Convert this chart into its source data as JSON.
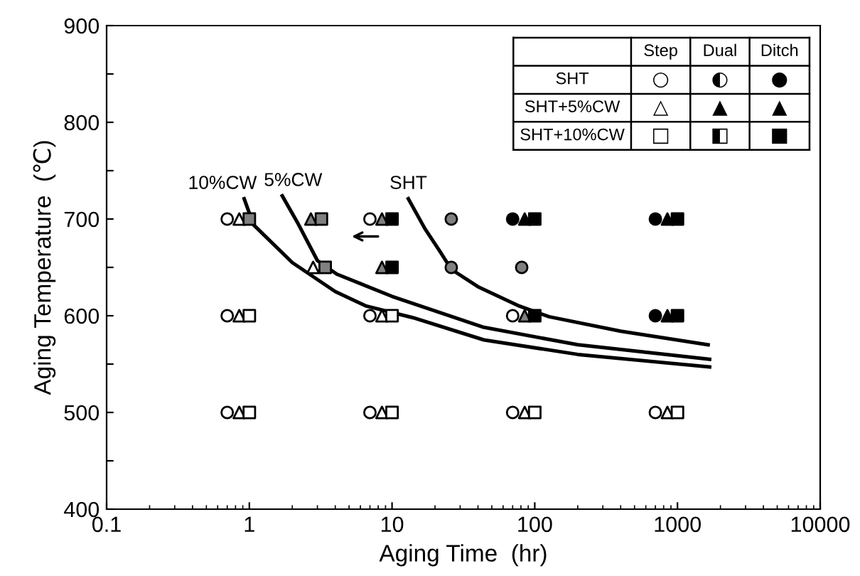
{
  "chart_data": {
    "type": "scatter",
    "xlabel": "Aging Time  (hr)",
    "ylabel": "Aging Temperature  (℃)",
    "log": "x",
    "xlim": [
      0.1,
      10000
    ],
    "xticks": [
      0.1,
      1,
      10,
      100,
      1000,
      10000
    ],
    "ylim": [
      400,
      900
    ],
    "yticks": [
      400,
      {
        "value": 450,
        "label": null
      },
      500,
      {
        "value": 550,
        "label": null
      },
      600,
      {
        "value": 650,
        "label": null
      },
      700,
      {
        "value": 750,
        "label": null
      },
      800,
      {
        "value": 850,
        "label": null
      },
      900
    ],
    "grid": false,
    "annotations": [
      "Step",
      "Dual",
      "Ditch",
      "SHT",
      "○",
      "◐",
      "●",
      "SHT+5%CW",
      "△",
      "▲",
      "▲",
      "SHT+10%CW",
      "□",
      "◧",
      "■"
    ],
    "series": [
      {
        "marker": "circle",
        "color": "#ffffff",
        "x": [
          0.7,
          7,
          0.7,
          7,
          70,
          0.7,
          7,
          70,
          700
        ],
        "values": [
          700,
          700,
          600,
          600,
          600,
          500,
          500,
          500,
          500
        ]
      },
      {
        "marker": "circle",
        "color": "#808080",
        "x": [
          26,
          26,
          81
        ],
        "values": [
          700,
          650,
          650
        ]
      },
      {
        "marker": "circle",
        "color": "#000000",
        "x": [
          70,
          700,
          700
        ],
        "values": [
          700,
          700,
          600
        ]
      },
      {
        "marker": "triangle",
        "color": "#ffffff",
        "x": [
          0.85,
          2.8,
          0.85,
          8.5,
          0.85,
          8.5,
          85,
          850
        ],
        "values": [
          700,
          650,
          600,
          600,
          500,
          500,
          500,
          500
        ]
      },
      {
        "marker": "triangle",
        "color": "#808080",
        "x": [
          2.7,
          8.5,
          8.5,
          85
        ],
        "values": [
          700,
          700,
          650,
          600
        ]
      },
      {
        "marker": "triangle",
        "color": "#000000",
        "x": [
          85,
          850,
          850
        ],
        "values": [
          700,
          700,
          600
        ]
      },
      {
        "marker": "square",
        "color": "#ffffff",
        "x": [
          1,
          10,
          1,
          10,
          100,
          1000
        ],
        "values": [
          600,
          600,
          500,
          500,
          500,
          500
        ]
      },
      {
        "marker": "square",
        "color": "#808080",
        "x": [
          1,
          3.2,
          3.4
        ],
        "values": [
          700,
          700,
          650
        ]
      },
      {
        "marker": "square",
        "color": "#000000",
        "x": [
          10,
          10,
          100,
          1000,
          100,
          1000
        ],
        "values": [
          700,
          650,
          700,
          700,
          600,
          600
        ]
      },
      {
        "type": "line",
        "name": "SHT",
        "color": "#000000",
        "x": [
          13,
          17,
          22,
          26,
          40,
          78,
          126,
          400,
          1640
        ],
        "values": [
          721,
          690,
          665,
          648,
          630,
          610,
          599,
          584,
          570
        ]
      },
      {
        "type": "line",
        "name": "5%CW",
        "color": "#000000",
        "x": [
          1.7,
          2.2,
          3.0,
          4.1,
          10,
          44,
          200,
          1680
        ],
        "values": [
          724,
          695,
          657,
          643,
          620,
          588,
          570,
          555
        ]
      },
      {
        "type": "line",
        "name": "10%CW",
        "color": "#000000",
        "x": [
          0.92,
          1.07,
          2,
          4,
          6.6,
          14,
          44,
          200,
          1680
        ],
        "values": [
          721,
          694,
          655,
          625,
          610,
          598,
          575,
          560,
          547
        ]
      }
    ]
  }
}
